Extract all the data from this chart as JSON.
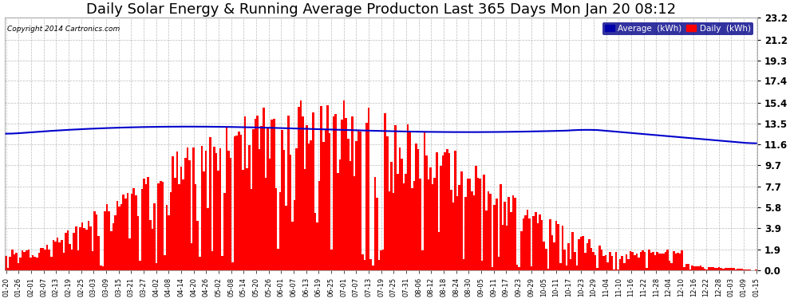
{
  "title": "Daily Solar Energy & Running Average Producton Last 365 Days Mon Jan 20 08:12",
  "copyright": "Copyright 2014 Cartronics.com",
  "legend_avg": "Average  (kWh)",
  "legend_daily": "Daily  (kWh)",
  "yticks": [
    0.0,
    1.9,
    3.9,
    5.8,
    7.7,
    9.7,
    11.6,
    13.5,
    15.4,
    17.4,
    19.3,
    21.2,
    23.2
  ],
  "ymax": 23.2,
  "ymin": 0.0,
  "bar_color": "#ff0000",
  "avg_line_color": "#0000cc",
  "background_color": "#ffffff",
  "title_fontsize": 13,
  "figsize": [
    9.9,
    3.75
  ],
  "dpi": 100,
  "x_labels": [
    "01-20",
    "01-26",
    "02-01",
    "02-07",
    "02-13",
    "02-19",
    "02-25",
    "03-03",
    "03-09",
    "03-15",
    "03-21",
    "03-27",
    "04-02",
    "04-08",
    "04-14",
    "04-20",
    "04-26",
    "05-02",
    "05-08",
    "05-14",
    "05-20",
    "05-26",
    "06-01",
    "06-07",
    "06-13",
    "06-19",
    "06-25",
    "07-01",
    "07-07",
    "07-13",
    "07-19",
    "07-25",
    "07-31",
    "08-06",
    "08-12",
    "08-18",
    "08-24",
    "08-30",
    "09-05",
    "09-11",
    "09-17",
    "09-23",
    "09-29",
    "10-05",
    "10-11",
    "10-17",
    "10-23",
    "10-29",
    "11-04",
    "11-10",
    "11-16",
    "11-22",
    "11-28",
    "12-04",
    "12-10",
    "12-16",
    "12-22",
    "12-28",
    "01-03",
    "01-09",
    "01-15"
  ]
}
